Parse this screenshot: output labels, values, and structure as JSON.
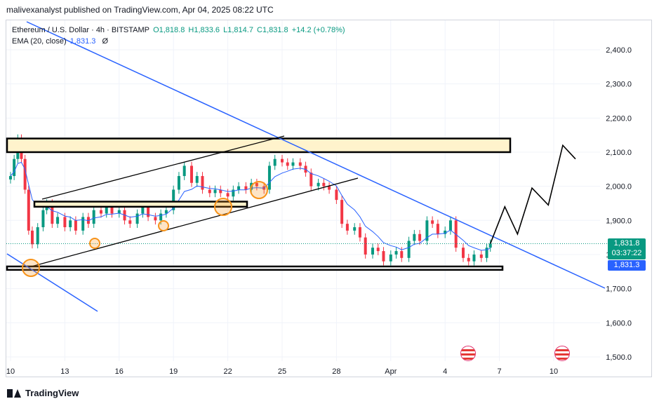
{
  "header": {
    "publisher_text": "malivexanalyst published on TradingView.com, Apr 04, 2025 08:22 UTC"
  },
  "legend": {
    "symbol": "Ethereum / U.S. Dollar · 4h · BITSTAMP",
    "open": "O1,818.8",
    "high": "H1,833.6",
    "low": "L1,814.7",
    "close": "C1,831.8",
    "change": "+14.2 (+0.78%)",
    "ema_label": "EMA (20, close)",
    "ema_value": "1,831.3",
    "ema_symbol": "Ø"
  },
  "price_tags": {
    "last_price": "1,831.8",
    "countdown": "03:37:22",
    "ema_price": "1,831.3"
  },
  "footer": {
    "brand": "TradingView"
  },
  "colors": {
    "up": "#089981",
    "down": "#f23645",
    "ema": "#2962ff",
    "trendline": "#2962ff",
    "zone_fill": "#fff3cc",
    "circle": "#f7931a"
  },
  "chart_data": {
    "type": "candlestick",
    "symbol": "ETH/USD",
    "timeframe": "4h",
    "y_ticks": [
      2400,
      2300,
      2200,
      2100,
      2000,
      1900,
      1800,
      1700,
      1600,
      1500
    ],
    "y_tick_labels": [
      "2,400.0",
      "2,300.0",
      "2,200.0",
      "2,100.0",
      "2,000.0",
      "1,900.0",
      "1,800.0",
      "1,700.0",
      "1,600.0",
      "1,500.0"
    ],
    "x_ticks": [
      "10",
      "13",
      "16",
      "19",
      "22",
      "25",
      "28",
      "Apr",
      "4",
      "7",
      "10"
    ],
    "ylim": [
      1460,
      2470
    ],
    "close_path": [
      [
        10,
        2030
      ],
      [
        10.2,
        2080
      ],
      [
        10.4,
        2140
      ],
      [
        10.6,
        2080
      ],
      [
        10.8,
        1990
      ],
      [
        11,
        1870
      ],
      [
        11.2,
        1830
      ],
      [
        11.5,
        1880
      ],
      [
        11.8,
        1930
      ],
      [
        12,
        1950
      ],
      [
        12.3,
        1890
      ],
      [
        12.6,
        1910
      ],
      [
        13,
        1880
      ],
      [
        13.3,
        1900
      ],
      [
        13.6,
        1870
      ],
      [
        14,
        1910
      ],
      [
        14.3,
        1890
      ],
      [
        14.6,
        1930
      ],
      [
        15,
        1920
      ],
      [
        15.3,
        1940
      ],
      [
        15.6,
        1920
      ],
      [
        16,
        1930
      ],
      [
        16.3,
        1900
      ],
      [
        16.6,
        1890
      ],
      [
        17,
        1920
      ],
      [
        17.3,
        1940
      ],
      [
        17.6,
        1910
      ],
      [
        18,
        1900
      ],
      [
        18.3,
        1920
      ],
      [
        18.6,
        1930
      ],
      [
        19,
        1990
      ],
      [
        19.3,
        2030
      ],
      [
        19.6,
        2060
      ],
      [
        20,
        2010
      ],
      [
        20.3,
        2030
      ],
      [
        20.6,
        1990
      ],
      [
        21,
        1980
      ],
      [
        21.3,
        1990
      ],
      [
        21.6,
        1980
      ],
      [
        22,
        1970
      ],
      [
        22.3,
        1990
      ],
      [
        22.6,
        2000
      ],
      [
        23,
        1990
      ],
      [
        23.3,
        2010
      ],
      [
        23.6,
        2000
      ],
      [
        24,
        1990
      ],
      [
        24.3,
        2060
      ],
      [
        24.6,
        2080
      ],
      [
        25,
        2070
      ],
      [
        25.3,
        2060
      ],
      [
        25.6,
        2070
      ],
      [
        26,
        2060
      ],
      [
        26.3,
        2040
      ],
      [
        26.6,
        2000
      ],
      [
        27,
        2010
      ],
      [
        27.3,
        2000
      ],
      [
        27.6,
        1990
      ],
      [
        28,
        1960
      ],
      [
        28.3,
        1890
      ],
      [
        28.6,
        1870
      ],
      [
        29,
        1880
      ],
      [
        29.3,
        1850
      ],
      [
        29.6,
        1800
      ],
      [
        30,
        1820
      ],
      [
        30.3,
        1810
      ],
      [
        30.6,
        1780
      ],
      [
        31,
        1800
      ],
      [
        31.3,
        1810
      ],
      [
        31.6,
        1790
      ],
      [
        32,
        1840
      ],
      [
        32.3,
        1860
      ],
      [
        32.6,
        1840
      ],
      [
        33,
        1900
      ],
      [
        33.3,
        1890
      ],
      [
        33.6,
        1860
      ],
      [
        34,
        1870
      ],
      [
        34.3,
        1900
      ],
      [
        34.6,
        1820
      ],
      [
        35,
        1790
      ],
      [
        35.3,
        1780
      ],
      [
        35.6,
        1800
      ],
      [
        36,
        1790
      ],
      [
        36.3,
        1820
      ],
      [
        36.5,
        1832
      ]
    ],
    "ema_value": 1831.3,
    "last_close": 1831.8,
    "drawings": {
      "resistance_zone": [
        2100,
        2140
      ],
      "mid_zone": [
        1940,
        1955
      ],
      "support_zone": [
        1755,
        1765
      ],
      "projection_path": [
        [
          36.5,
          1832
        ],
        [
          37.3,
          1940
        ],
        [
          38,
          1860
        ],
        [
          38.8,
          1995
        ],
        [
          39.7,
          1945
        ],
        [
          40.5,
          2120
        ],
        [
          41.2,
          2080
        ]
      ]
    }
  }
}
